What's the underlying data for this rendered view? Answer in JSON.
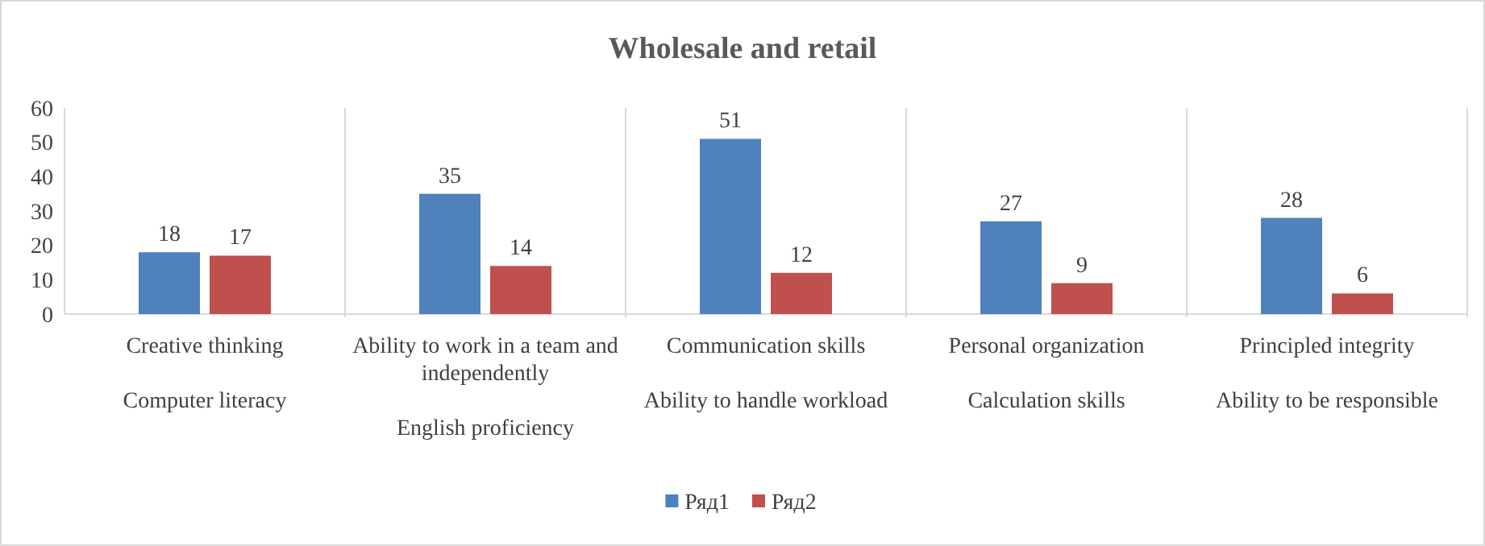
{
  "chart_data": {
    "type": "bar",
    "title": "Wholesale and retail",
    "categories": [
      "Creative thinking\nComputer literacy",
      "Ability to work in a team and independently\nEnglish proficiency",
      "Communication skills\nAbility to handle workload",
      "Personal organization\nCalculation skills",
      "Principled integrity\nAbility to be responsible"
    ],
    "series": [
      {
        "name": "Ряд1",
        "color": "#4f81bd",
        "values": [
          18,
          35,
          51,
          27,
          28
        ]
      },
      {
        "name": "Ряд2",
        "color": "#c0504d",
        "values": [
          17,
          14,
          12,
          9,
          6
        ]
      }
    ],
    "ylim": [
      0,
      60
    ],
    "yticks": [
      0,
      10,
      20,
      30,
      40,
      50,
      60
    ],
    "grid": "x",
    "legend": "bottom",
    "data_labels": true
  }
}
